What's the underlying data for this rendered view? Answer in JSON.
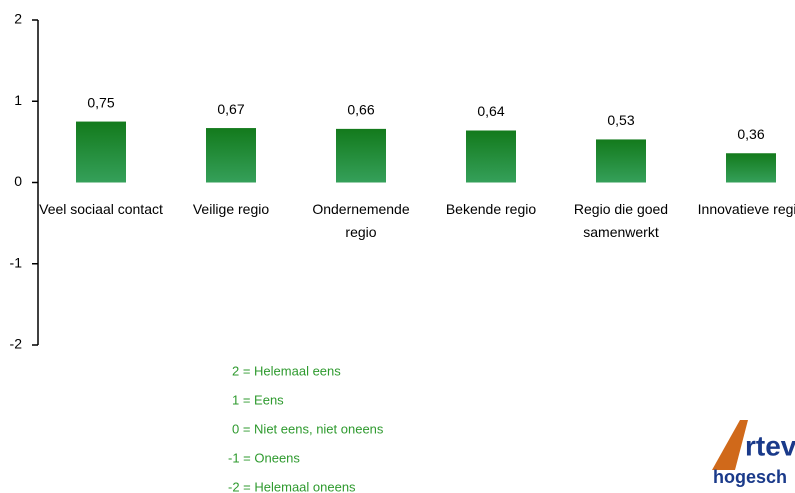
{
  "chart_data": {
    "type": "bar",
    "categories": [
      "Veel sociaal contact",
      "Veilige regio",
      "Ondernemende regio",
      "Bekende regio",
      "Regio die goed samenwerkt",
      "Innovatieve regio"
    ],
    "values": [
      0.75,
      0.67,
      0.66,
      0.64,
      0.53,
      0.36
    ],
    "value_labels": [
      "0,75",
      "0,67",
      "0,66",
      "0,64",
      "0,53",
      "0,36"
    ],
    "color": "#1f8a2a",
    "ylim": [
      -2,
      2
    ],
    "yticks": [
      2,
      1,
      0,
      -1,
      -2
    ],
    "annotations": [
      "2 = Helemaal eens",
      "1 = Eens",
      "0 = Niet eens, niet oneens",
      "-1 = Oneens",
      "-2 = Helemaal oneens"
    ],
    "logo": [
      "rtev",
      "hogesch"
    ]
  }
}
